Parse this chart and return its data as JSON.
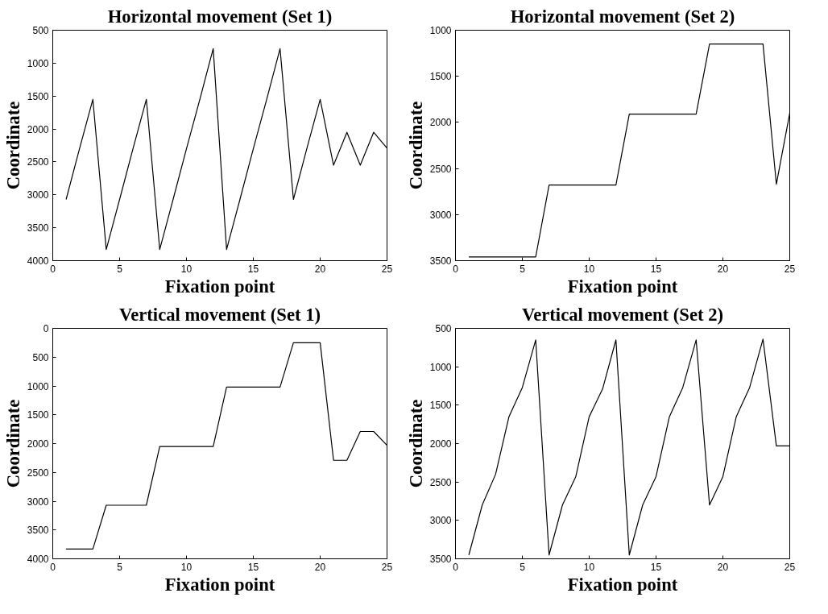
{
  "chart_data": [
    {
      "type": "line",
      "title": "Horizontal movement (Set 1)",
      "xlabel": "Fixation point",
      "ylabel": "Coordinate",
      "x": [
        1,
        2,
        3,
        4,
        5,
        6,
        7,
        8,
        9,
        10,
        11,
        12,
        13,
        14,
        15,
        16,
        17,
        18,
        19,
        20,
        21,
        22,
        23,
        24,
        25
      ],
      "series": [
        {
          "color": "#000000",
          "values": [
            3070,
            2300,
            1550,
            3830,
            3070,
            2300,
            1550,
            3830,
            3070,
            2300,
            1550,
            780,
            3830,
            3070,
            2300,
            1550,
            780,
            3070,
            2300,
            1550,
            2550,
            2050,
            2550,
            2050,
            2290
          ]
        }
      ],
      "xlim": [
        0,
        25
      ],
      "xticks": [
        0,
        5,
        10,
        15,
        20,
        25
      ],
      "ylim": [
        4000,
        500
      ],
      "yticks": [
        500,
        1000,
        1500,
        2000,
        2500,
        3000,
        3500,
        4000
      ],
      "grid": false,
      "marker": "none",
      "line_style": "solid"
    },
    {
      "type": "line",
      "title": "Horizontal movement (Set 2)",
      "xlabel": "Fixation point",
      "ylabel": "Coordinate",
      "x": [
        1,
        2,
        3,
        4,
        5,
        6,
        7,
        8,
        9,
        10,
        11,
        12,
        13,
        14,
        15,
        16,
        17,
        18,
        19,
        20,
        21,
        22,
        23,
        24,
        25
      ],
      "series": [
        {
          "color": "#000000",
          "values": [
            3460,
            3460,
            3460,
            3460,
            3460,
            3460,
            2680,
            2680,
            2680,
            2680,
            2680,
            2680,
            1910,
            1910,
            1910,
            1910,
            1910,
            1910,
            1150,
            1150,
            1150,
            1150,
            1150,
            2670,
            1900
          ]
        }
      ],
      "xlim": [
        0,
        25
      ],
      "xticks": [
        0,
        5,
        10,
        15,
        20,
        25
      ],
      "ylim": [
        3500,
        1000
      ],
      "yticks": [
        1000,
        1500,
        2000,
        2500,
        3000,
        3500
      ],
      "grid": false,
      "marker": "none",
      "line_style": "solid"
    },
    {
      "type": "line",
      "title": "Vertical movement (Set 1)",
      "xlabel": "Fixation point",
      "ylabel": "Coordinate",
      "x": [
        1,
        2,
        3,
        4,
        5,
        6,
        7,
        8,
        9,
        10,
        11,
        12,
        13,
        14,
        15,
        16,
        17,
        18,
        19,
        20,
        21,
        22,
        23,
        24,
        25
      ],
      "series": [
        {
          "color": "#000000",
          "values": [
            3830,
            3830,
            3830,
            3070,
            3070,
            3070,
            3070,
            2050,
            2050,
            2050,
            2050,
            2050,
            1020,
            1020,
            1020,
            1020,
            1020,
            250,
            250,
            250,
            2290,
            2290,
            1790,
            1790,
            2030
          ]
        }
      ],
      "xlim": [
        0,
        25
      ],
      "xticks": [
        0,
        5,
        10,
        15,
        20,
        25
      ],
      "ylim": [
        4000,
        0
      ],
      "yticks": [
        0,
        500,
        1000,
        1500,
        2000,
        2500,
        3000,
        3500,
        4000
      ],
      "grid": false,
      "marker": "none",
      "line_style": "solid"
    },
    {
      "type": "line",
      "title": "Vertical movement (Set 2)",
      "xlabel": "Fixation point",
      "ylabel": "Coordinate",
      "x": [
        1,
        2,
        3,
        4,
        5,
        6,
        7,
        8,
        9,
        10,
        11,
        12,
        13,
        14,
        15,
        16,
        17,
        18,
        19,
        20,
        21,
        22,
        23,
        24,
        25
      ],
      "series": [
        {
          "color": "#000000",
          "values": [
            3450,
            2800,
            2400,
            1650,
            1270,
            650,
            3450,
            2800,
            2430,
            1650,
            1290,
            650,
            3450,
            2800,
            2430,
            1650,
            1270,
            650,
            2800,
            2430,
            1650,
            1270,
            640,
            2030,
            2030
          ]
        }
      ],
      "xlim": [
        0,
        25
      ],
      "xticks": [
        0,
        5,
        10,
        15,
        20,
        25
      ],
      "ylim": [
        3500,
        500
      ],
      "yticks": [
        500,
        1000,
        1500,
        2000,
        2500,
        3000,
        3500
      ],
      "grid": false,
      "marker": "none",
      "line_style": "solid"
    }
  ]
}
